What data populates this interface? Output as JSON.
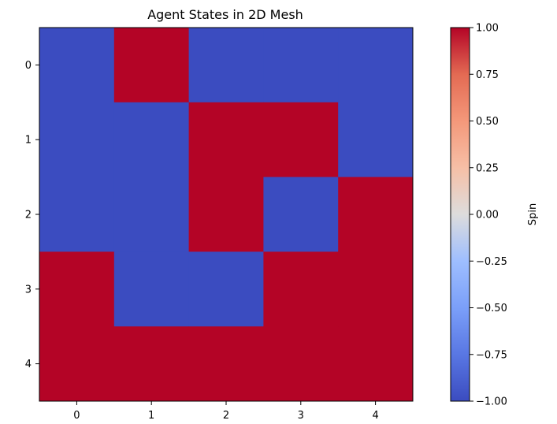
{
  "chart_data": {
    "type": "heatmap",
    "title": "Agent States in 2D Mesh",
    "xlabel": "",
    "ylabel": "",
    "x_ticks": [
      "0",
      "1",
      "2",
      "3",
      "4"
    ],
    "y_ticks": [
      "0",
      "1",
      "2",
      "3",
      "4"
    ],
    "matrix": [
      [
        -1,
        1,
        -1,
        -1,
        -1
      ],
      [
        -1,
        -1,
        1,
        1,
        -1
      ],
      [
        -1,
        -1,
        1,
        -1,
        1
      ],
      [
        1,
        -1,
        -1,
        1,
        1
      ],
      [
        1,
        1,
        1,
        1,
        1
      ]
    ],
    "colormap": "coolwarm",
    "color_low": "#3b4cc0",
    "color_high": "#b40426",
    "vmin": -1.0,
    "vmax": 1.0,
    "grid": false,
    "colorbar": {
      "label": "Spin",
      "ticks": [
        "1.00",
        "0.75",
        "0.50",
        "0.25",
        "0.00",
        "−0.25",
        "−0.50",
        "−0.75",
        "−1.00"
      ],
      "tick_values": [
        1.0,
        0.75,
        0.5,
        0.25,
        0.0,
        -0.25,
        -0.5,
        -0.75,
        -1.0
      ]
    }
  }
}
